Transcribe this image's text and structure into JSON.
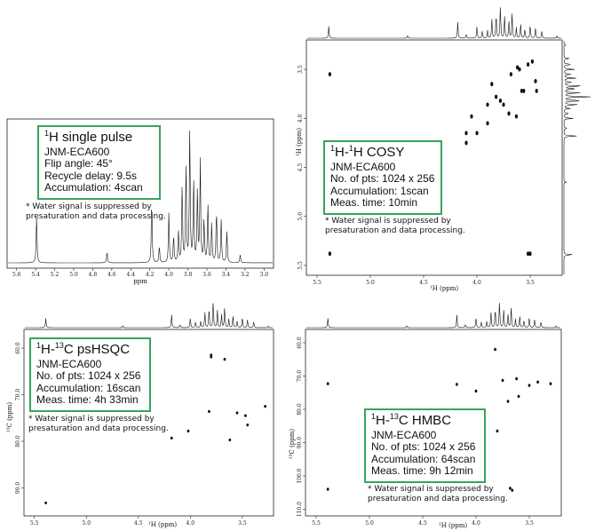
{
  "panels": {
    "single_pulse": {
      "title_sup": "1",
      "title_main": "H single pulse",
      "instrument": "JNM-ECA600",
      "line2": "Flip angle: 45°",
      "line3": "Recycle delay: 9.5s",
      "line4": "Accumulation: 4scan",
      "note1": "* Water signal is suppressed by",
      "note2": "presaturation and data processing.",
      "xlabel": "ppm"
    },
    "cosy": {
      "title_sup1": "1",
      "title_mid": "H-",
      "title_sup2": "1",
      "title_end": "H COSY",
      "instrument": "JNM-ECA600",
      "line2": "No. of pts: 1024 x 256",
      "line3": "Accumulation: 1scan",
      "line4": "Meas. time: 10min",
      "note1": "* Water signal is suppressed by",
      "note2": "presaturation and data processing.",
      "xlabel": "¹H (ppm)",
      "ylabel": "¹H (ppm)"
    },
    "hsqc": {
      "title_sup1": "1",
      "title_mid": "H-",
      "title_sup2": "13",
      "title_end": "C psHSQC",
      "instrument": "JNM-ECA600",
      "line2": "No. of pts: 1024 x 256",
      "line3": "Accumulation: 16scan",
      "line4": "Meas. time: 4h 33min",
      "note1": "* Water signal is suppressed by",
      "note2": "presaturation and data processing.",
      "xlabel": "¹H (ppm)",
      "ylabel": "¹³C (ppm)"
    },
    "hmbc": {
      "title_sup1": "1",
      "title_mid": "H-",
      "title_sup2": "13",
      "title_end": "C HMBC",
      "instrument": "JNM-ECA600",
      "line2": "No. of pts: 1024 x 256",
      "line3": "Accumulation: 64scan",
      "line4": "Meas. time: 9h 12min",
      "note1": "* Water signal is suppressed by",
      "note2": "presaturation and data processing.",
      "xlabel": "¹H (ppm)",
      "ylabel": "¹³C (ppm)"
    }
  },
  "chart_data": [
    {
      "type": "line",
      "name": "1H single pulse spectrum",
      "x_ticks": [
        "5.6",
        "5.4",
        "5.2",
        "5.0",
        "4.8",
        "4.6",
        "4.4",
        "4.2",
        "4.0",
        "3.8",
        "3.6",
        "3.4",
        "3.2",
        "3.0"
      ],
      "xlabel": "ppm",
      "xlim": [
        5.7,
        2.9
      ],
      "peaks_ppm": [
        5.39,
        4.65,
        4.18,
        4.1,
        4.0,
        3.95,
        3.9,
        3.86,
        3.82,
        3.78,
        3.74,
        3.7,
        3.67,
        3.63,
        3.59,
        3.55,
        3.5,
        3.45,
        3.39,
        3.25
      ],
      "peaks_rel_height": [
        0.33,
        0.08,
        0.45,
        0.12,
        0.35,
        0.2,
        0.22,
        0.55,
        0.7,
        0.95,
        0.6,
        0.5,
        0.75,
        0.3,
        0.42,
        0.28,
        0.38,
        0.3,
        0.22,
        0.06
      ]
    },
    {
      "type": "scatter",
      "name": "1H-1H COSY",
      "x_ticks": [
        "5.5",
        "5.0",
        "4.5",
        "4.0",
        "3.5"
      ],
      "y_ticks": [
        "3.5",
        "4.0",
        "4.5",
        "5.0",
        "5.5"
      ],
      "xlim": [
        5.6,
        3.2
      ],
      "ylim": [
        3.2,
        5.6
      ],
      "peaks": [
        [
          5.38,
          3.55
        ],
        [
          5.38,
          5.38
        ],
        [
          3.86,
          3.65
        ],
        [
          3.82,
          3.78
        ],
        [
          3.78,
          3.82
        ],
        [
          3.75,
          3.86
        ],
        [
          3.7,
          3.95
        ],
        [
          3.68,
          3.55
        ],
        [
          3.63,
          3.98
        ],
        [
          3.58,
          3.72
        ],
        [
          3.56,
          3.72
        ],
        [
          3.52,
          3.45
        ],
        [
          3.48,
          3.42
        ],
        [
          3.45,
          3.62
        ],
        [
          3.44,
          3.72
        ],
        [
          3.62,
          3.48
        ],
        [
          3.6,
          3.5
        ],
        [
          3.9,
          3.86
        ],
        [
          4.05,
          3.98
        ],
        [
          4.1,
          4.15
        ],
        [
          4.1,
          4.25
        ],
        [
          4.0,
          4.15
        ],
        [
          3.52,
          5.38
        ],
        [
          3.5,
          5.38
        ],
        [
          3.9,
          4.05
        ]
      ]
    },
    {
      "type": "scatter",
      "name": "1H-13C psHSQC",
      "x_ticks": [
        "5.5",
        "5.0",
        "4.5",
        "4.0",
        "3.5"
      ],
      "y_ticks": [
        "60.0",
        "70.0",
        "80.0",
        "90.0"
      ],
      "xlim": [
        5.6,
        3.2
      ],
      "ylim": [
        56,
        96
      ],
      "peaks": [
        [
          5.39,
          93.2
        ],
        [
          4.18,
          79.3
        ],
        [
          4.02,
          77.8
        ],
        [
          3.82,
          73.6
        ],
        [
          3.8,
          61.9
        ],
        [
          3.8,
          61.5
        ],
        [
          3.67,
          62.4
        ],
        [
          3.55,
          73.9
        ],
        [
          3.47,
          74.5
        ],
        [
          3.45,
          76.5
        ],
        [
          3.28,
          72.5
        ],
        [
          3.62,
          79.7
        ]
      ]
    },
    {
      "type": "scatter",
      "name": "1H-13C HMBC",
      "x_ticks": [
        "5.5",
        "5.0",
        "4.5",
        "4.0",
        "3.5"
      ],
      "y_ticks": [
        "60.0",
        "70.0",
        "80.0",
        "90.0",
        "100.0",
        "110.0"
      ],
      "xlim": [
        5.6,
        3.2
      ],
      "ylim": [
        56,
        112
      ],
      "peaks": [
        [
          5.39,
          72.3
        ],
        [
          5.39,
          104.0
        ],
        [
          4.18,
          72.5
        ],
        [
          4.0,
          74.5
        ],
        [
          3.82,
          62.0
        ],
        [
          3.75,
          71.3
        ],
        [
          3.7,
          77.6
        ],
        [
          3.68,
          103.7
        ],
        [
          3.66,
          104.3
        ],
        [
          3.62,
          70.8
        ],
        [
          3.6,
          76.1
        ],
        [
          3.5,
          72.8
        ],
        [
          3.42,
          71.8
        ],
        [
          3.8,
          86.5
        ],
        [
          4.4,
          85.6
        ],
        [
          3.3,
          72.3
        ]
      ]
    }
  ]
}
